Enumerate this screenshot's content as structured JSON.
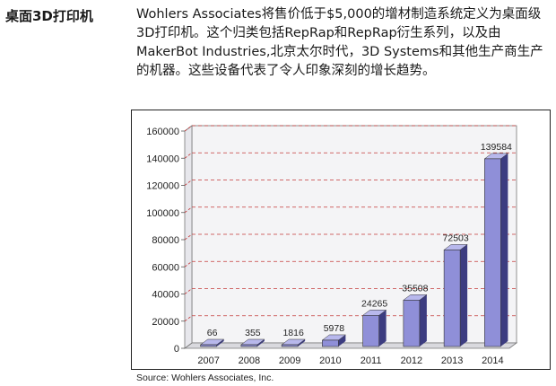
{
  "heading": "桌面3D打印机",
  "intro": "Wohlers Associates将售价低于$5,000的增材制造系统定义为桌面级3D打印机。这个归类包括RepRap和RepRap衍生系列，以及由MakerBot Industries,北京太尔时代，3D Systems和其他生产商生产的机器。这些设备代表了令人印象深刻的增长趋势。",
  "source": "Source: Wohlers Associates, Inc.",
  "colors": {
    "bar_front": "#8f8fd8",
    "bar_side": "#3c3c80",
    "bar_top": "#b8b8ec",
    "grid": "#c43a3a",
    "plot_bg": "#f4f4f6",
    "axis": "#777777"
  },
  "chart_data": {
    "type": "bar",
    "title": "",
    "xlabel": "",
    "ylabel": "",
    "categories": [
      "2007",
      "2008",
      "2009",
      "2010",
      "2011",
      "2012",
      "2013",
      "2014"
    ],
    "values": [
      66,
      355,
      1816,
      5978,
      24265,
      35508,
      72503,
      139584
    ],
    "data_labels": [
      "66",
      "355",
      "1816",
      "5978",
      "24265",
      "35508",
      "72503",
      "139584"
    ],
    "ylim": [
      0,
      160000
    ],
    "yticks": [
      0,
      20000,
      40000,
      60000,
      80000,
      100000,
      120000,
      140000,
      160000
    ],
    "ytick_labels": [
      "0",
      "20000",
      "40000",
      "60000",
      "80000",
      "100000",
      "120000",
      "140000",
      "160000"
    ],
    "grid": true,
    "legend": "none",
    "style": "3d"
  }
}
